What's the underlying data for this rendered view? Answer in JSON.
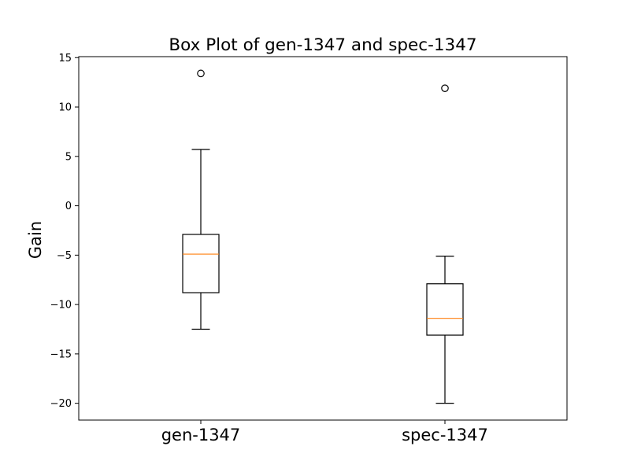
{
  "chart_data": {
    "type": "box",
    "title": "Box Plot of gen-1347 and spec-1347",
    "xlabel": "",
    "ylabel": "Gain",
    "categories": [
      "gen-1347",
      "spec-1347"
    ],
    "ylim": [
      -21.7,
      15.1
    ],
    "yticks": [
      15,
      10,
      5,
      0,
      -5,
      -10,
      -15,
      -20
    ],
    "ytick_labels": [
      "15",
      "10",
      "5",
      "0",
      "−5",
      "−10",
      "−15",
      "−20"
    ],
    "boxes": [
      {
        "name": "gen-1347",
        "whisker_low": -12.5,
        "q1": -8.8,
        "median": -4.9,
        "q3": -2.9,
        "whisker_high": 5.7,
        "outliers": [
          13.4
        ]
      },
      {
        "name": "spec-1347",
        "whisker_low": -20.0,
        "q1": -13.1,
        "median": -11.4,
        "q3": -7.9,
        "whisker_high": -5.1,
        "outliers": [
          11.9
        ]
      }
    ],
    "grid": false,
    "colors": {
      "box": "#000000",
      "median": "#ff7f0e",
      "background": "#ffffff"
    }
  }
}
